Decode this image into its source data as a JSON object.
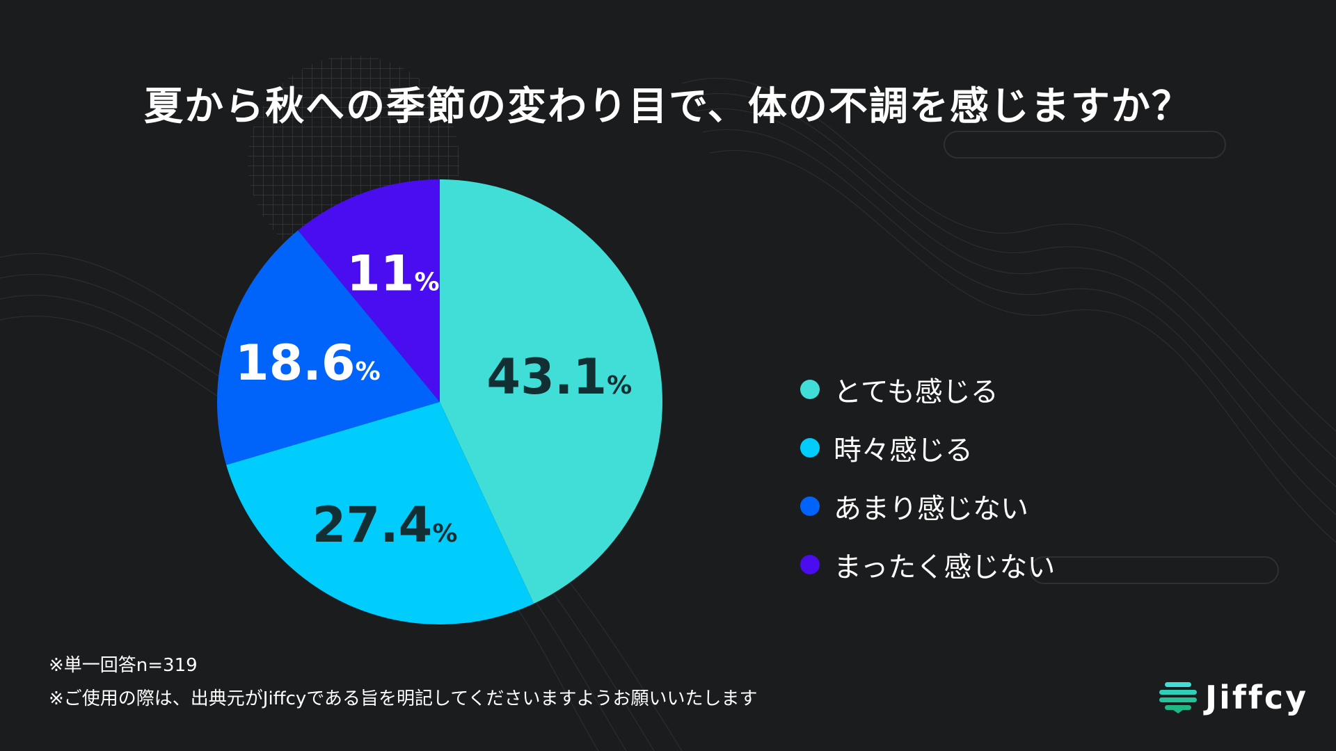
{
  "title": "夏から秋への季節の変わり目で、体の不調を感じますか？",
  "notes": {
    "sample": "※単一回答n=319",
    "usage": "※ご使用の際は、出典元がJiffcyである旨を明記してくださいますようお願いいたします"
  },
  "logo": {
    "text": "Jiffcy",
    "icon": "stacked-bars-icon"
  },
  "colors": {
    "background": "#1b1c1e",
    "slice1": "#40ded6",
    "slice2": "#00cdfb",
    "slice3": "#0064fa",
    "slice4": "#4a0df0",
    "dark_label": "#123034",
    "light_label": "#ffffff"
  },
  "chart_data": {
    "type": "pie",
    "title": "夏から秋への季節の変わり目で、体の不調を感じますか？",
    "unit": "%",
    "slices": [
      {
        "label": "とても感じる",
        "value": 43.1,
        "display": "43.1",
        "color": "#40ded6"
      },
      {
        "label": "時々感じる",
        "value": 27.4,
        "display": "27.4",
        "color": "#00cdfb"
      },
      {
        "label": "あまり感じない",
        "value": 18.6,
        "display": "18.6",
        "color": "#0064fa"
      },
      {
        "label": "まったく感じない",
        "value": 11,
        "display": "11",
        "color": "#4a0df0"
      }
    ],
    "legend": "right",
    "start": "top",
    "direction": "clockwise"
  }
}
